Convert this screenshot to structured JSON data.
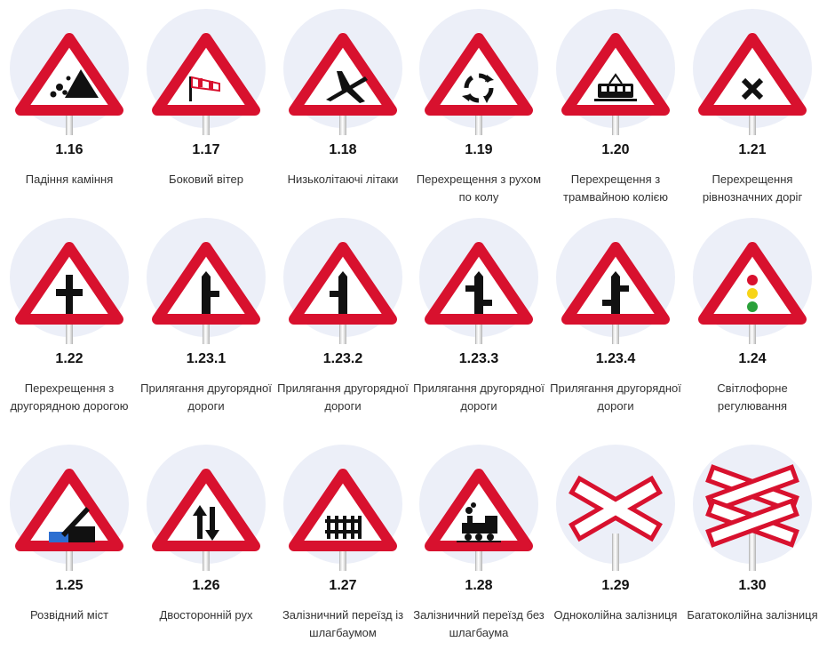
{
  "signs": [
    {
      "code": "1.16",
      "label": "Падіння каміння",
      "icon": "falling-rocks-icon"
    },
    {
      "code": "1.17",
      "label": "Боковий вітер",
      "icon": "windsock-icon"
    },
    {
      "code": "1.18",
      "label": "Низьколітаючі літаки",
      "icon": "airplane-icon"
    },
    {
      "code": "1.19",
      "label": "Перехрещення з рухом по колу",
      "icon": "roundabout-icon"
    },
    {
      "code": "1.20",
      "label": "Перехрещення з трамвайною колією",
      "icon": "tram-icon"
    },
    {
      "code": "1.21",
      "label": "Перехрещення рівнозначних доріг",
      "icon": "x-cross-icon"
    },
    {
      "code": "1.22",
      "label": "Перехрещення з другорядною дорогою",
      "icon": "crossroad-icon"
    },
    {
      "code": "1.23.1",
      "label": "Прилягання другорядної дороги",
      "icon": "side-road-right-icon"
    },
    {
      "code": "1.23.2",
      "label": "Прилягання другорядної дороги",
      "icon": "side-road-left-icon"
    },
    {
      "code": "1.23.3",
      "label": "Прилягання другорядної дороги",
      "icon": "side-road-right-offset-icon"
    },
    {
      "code": "1.23.4",
      "label": "Прилягання другорядної дороги",
      "icon": "side-road-left-offset-icon"
    },
    {
      "code": "1.24",
      "label": "Світлофорне регулювання",
      "icon": "traffic-light-icon"
    },
    {
      "code": "1.25",
      "label": "Розвідний міст",
      "icon": "drawbridge-icon"
    },
    {
      "code": "1.26",
      "label": "Двосторонній рух",
      "icon": "two-way-arrows-icon"
    },
    {
      "code": "1.27",
      "label": "Залізничний переїзд із шлагбаумом",
      "icon": "barrier-fence-icon"
    },
    {
      "code": "1.28",
      "label": "Залізничний переїзд без шлагбаума",
      "icon": "steam-locomotive-icon"
    },
    {
      "code": "1.29",
      "label": "Одноколійна залізниця",
      "icon": "single-cross-icon"
    },
    {
      "code": "1.30",
      "label": "Багатоколійна залізниця",
      "icon": "double-cross-icon"
    }
  ],
  "colors": {
    "sign_red": "#d8112e",
    "disc": "#eceff8",
    "yellow": "#f7d417",
    "green": "#2aa13a"
  }
}
